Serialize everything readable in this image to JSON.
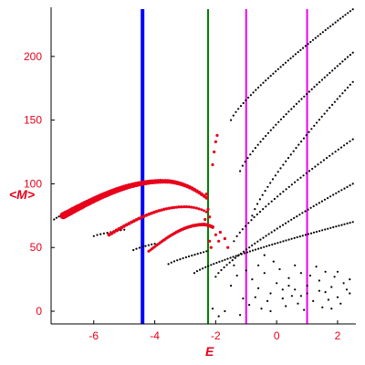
{
  "chart_data": {
    "type": "scatter",
    "xlabel": "E",
    "ylabel": "<M>",
    "xlim": [
      -7.4,
      2.6
    ],
    "ylim": [
      -10,
      240
    ],
    "x_ticks": [
      -6,
      -4,
      -2,
      0,
      2
    ],
    "y_ticks": [
      0,
      50,
      100,
      150,
      200
    ],
    "grid": false,
    "legend": "none",
    "colors": {
      "axes_text": "#e8001a",
      "black_points": "#000000",
      "red_points": "#e8001a",
      "blue_line": "#0000ff",
      "green_line": "#008000",
      "magenta_lines": "#ee00ee"
    },
    "vertical_lines": [
      {
        "x": -4.4,
        "color": "#0000ff",
        "width": 4
      },
      {
        "x": -2.25,
        "color": "#008000",
        "width": 2
      },
      {
        "x": -1.0,
        "color": "#ee00ee",
        "width": 2
      },
      {
        "x": 1.0,
        "color": "#ee00ee",
        "width": 2
      }
    ],
    "black_branches": [
      {
        "x0": -7.3,
        "x1": -6.6,
        "y0": 72,
        "y1": 80,
        "n": 10
      },
      {
        "x0": -6.0,
        "x1": -5.0,
        "y0": 59,
        "y1": 64,
        "n": 10
      },
      {
        "x0": -4.7,
        "x1": -4.0,
        "y0": 48,
        "y1": 53,
        "n": 8
      },
      {
        "x0": -3.55,
        "x1": -2.3,
        "y0": 37,
        "y1": 47,
        "n": 14
      },
      {
        "x0": -2.7,
        "x1": 2.5,
        "y0": 30,
        "y1": 70,
        "n": 58
      },
      {
        "x0": -2.0,
        "x1": 2.5,
        "y0": 27,
        "y1": 100,
        "n": 50
      },
      {
        "x0": -1.4,
        "x1": 2.5,
        "y0": 55,
        "y1": 135,
        "n": 42
      },
      {
        "x0": -0.8,
        "x1": 2.5,
        "y0": 75,
        "y1": 180,
        "n": 40
      },
      {
        "x0": -1.2,
        "x1": 2.5,
        "y0": 110,
        "y1": 203,
        "n": 45
      },
      {
        "x0": -1.5,
        "x1": 2.5,
        "y0": 150,
        "y1": 237,
        "n": 50
      }
    ],
    "black_scatter": [
      [
        -1.5,
        20
      ],
      [
        -1.3,
        28
      ],
      [
        -1.0,
        32
      ],
      [
        -0.8,
        25
      ],
      [
        -0.6,
        18
      ],
      [
        -0.4,
        30
      ],
      [
        -0.2,
        14
      ],
      [
        0.0,
        22
      ],
      [
        0.2,
        10
      ],
      [
        0.4,
        26
      ],
      [
        0.6,
        17
      ],
      [
        0.8,
        12
      ],
      [
        1.0,
        20
      ],
      [
        1.2,
        8
      ],
      [
        1.4,
        24
      ],
      [
        1.6,
        15
      ],
      [
        1.8,
        19
      ],
      [
        2.0,
        11
      ],
      [
        2.2,
        22
      ],
      [
        2.4,
        14
      ],
      [
        -0.9,
        5
      ],
      [
        -0.5,
        2
      ],
      [
        0.3,
        4
      ],
      [
        0.9,
        1
      ],
      [
        1.5,
        3
      ],
      [
        2.1,
        6
      ],
      [
        -1.1,
        10
      ],
      [
        -0.3,
        8
      ],
      [
        0.5,
        12
      ],
      [
        1.1,
        28
      ],
      [
        1.7,
        9
      ],
      [
        2.3,
        17
      ],
      [
        0.1,
        33
      ],
      [
        -0.7,
        11
      ],
      [
        0.7,
        6
      ],
      [
        1.9,
        27
      ],
      [
        -1.7,
        0
      ],
      [
        -1.9,
        -4
      ],
      [
        -2.1,
        2
      ],
      [
        -1.4,
        36
      ],
      [
        -0.1,
        39
      ],
      [
        0.6,
        36
      ],
      [
        1.3,
        35
      ],
      [
        2.0,
        31
      ],
      [
        -0.4,
        44
      ],
      [
        0.4,
        20
      ],
      [
        1.0,
        14
      ],
      [
        -0.2,
        0
      ],
      [
        1.8,
        2
      ],
      [
        2.4,
        25
      ],
      [
        -1.2,
        -3
      ],
      [
        0.8,
        30
      ],
      [
        1.6,
        31
      ],
      [
        -0.6,
        36
      ],
      [
        0.2,
        17
      ],
      [
        1.4,
        16
      ]
    ],
    "red_branches": [
      {
        "x0": -7.0,
        "x1": -2.3,
        "y_start": 75,
        "y_peak": 102,
        "x_peak": -3.7,
        "y_end": 89,
        "n": 60,
        "r_start": 4,
        "r_end": 2
      },
      {
        "x0": -5.5,
        "x1": -2.3,
        "y_start": 60,
        "y_peak": 82,
        "x_peak": -3.0,
        "y_end": 78,
        "n": 40,
        "r_start": 2,
        "r_end": 1.5
      },
      {
        "x0": -4.2,
        "x1": -2.1,
        "y_start": 47,
        "y_peak": 68,
        "x_peak": -2.4,
        "y_end": 66,
        "n": 40,
        "r_start": 1.5,
        "r_end": 2
      }
    ],
    "red_markers": [
      [
        -2.1,
        115
      ],
      [
        -2.05,
        125
      ],
      [
        -2.0,
        133
      ],
      [
        -1.95,
        138
      ],
      [
        -2.3,
        92
      ],
      [
        -2.25,
        80
      ],
      [
        -2.2,
        74
      ],
      [
        -1.85,
        62
      ],
      [
        -1.7,
        57
      ],
      [
        -1.6,
        50
      ],
      [
        -2.15,
        50
      ],
      [
        -2.2,
        55
      ],
      [
        -2.0,
        60
      ],
      [
        -1.9,
        55
      ],
      [
        -2.35,
        72
      ]
    ]
  }
}
